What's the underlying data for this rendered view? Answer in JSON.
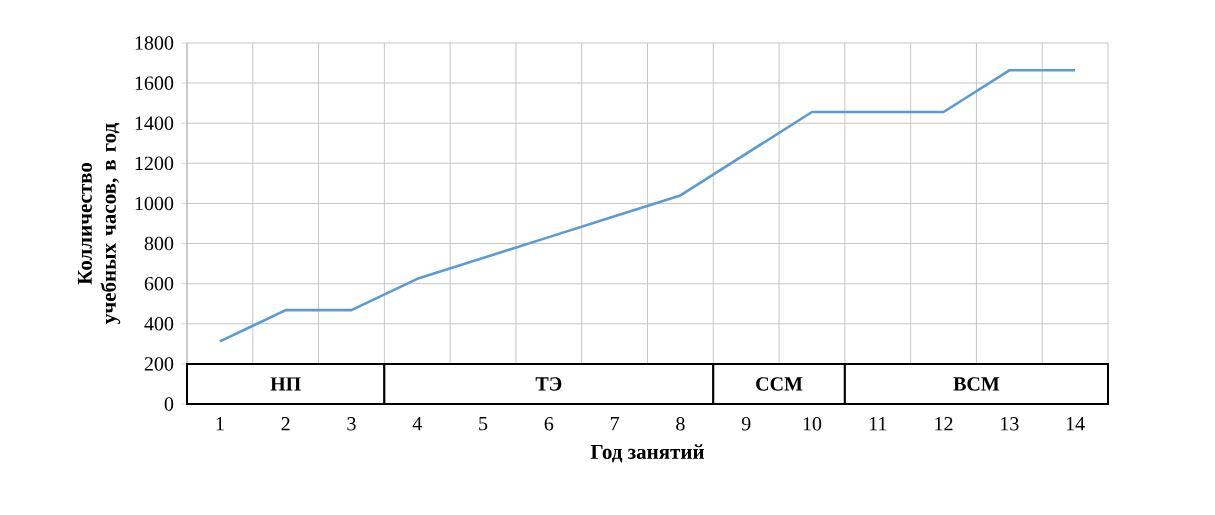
{
  "chart_data": {
    "type": "line",
    "xlabel": "Год занятий",
    "ylabel": "Колличество  учебных часов, в год",
    "categories": [
      "1",
      "2",
      "3",
      "4",
      "5",
      "6",
      "7",
      "8",
      "9",
      "10",
      "11",
      "12",
      "13",
      "14"
    ],
    "series": [
      {
        "color": "#5b9bd5",
        "values": [
          312,
          468,
          468,
          624,
          728,
          832,
          936,
          1040,
          1248,
          1456,
          1456,
          1456,
          1664,
          1664
        ]
      }
    ],
    "ylim": [
      0,
      1800
    ],
    "yticks": [
      0,
      200,
      400,
      600,
      800,
      1000,
      1200,
      1400,
      1600,
      1800
    ],
    "bands": [
      {
        "axis": "x",
        "from": "1",
        "to": "3",
        "label": "НП",
        "color": "#ffffff"
      },
      {
        "axis": "x",
        "from": "4",
        "to": "8",
        "label": "ТЭ",
        "color": "#ffffff"
      },
      {
        "axis": "x",
        "from": "9",
        "to": "10",
        "label": "ССМ",
        "color": "#ffffff"
      },
      {
        "axis": "x",
        "from": "11",
        "to": "14",
        "label": "ВСМ",
        "color": "#ffffff"
      }
    ],
    "grid": true,
    "marker": "none",
    "line_style": "solid"
  }
}
